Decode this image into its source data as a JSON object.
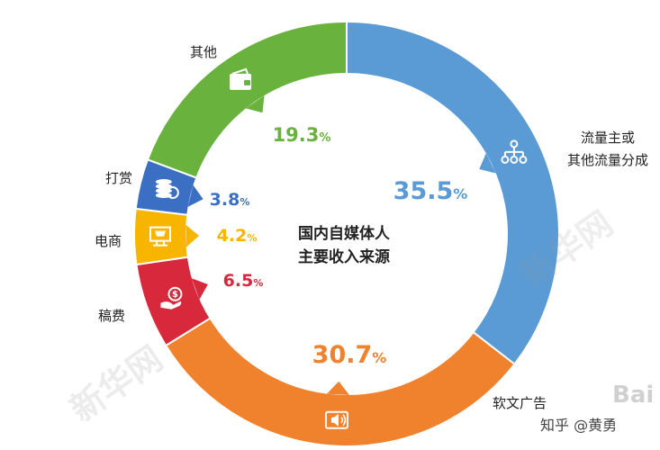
{
  "chart_data": {
    "type": "pie",
    "title": "国内自媒体人主要收入来源",
    "title_lines": [
      "国内自媒体人",
      "主要收入来源"
    ],
    "unit": "%",
    "slices": [
      {
        "name": "流量主或其他流量分成",
        "name_lines": [
          "流量主或",
          "其他流量分成"
        ],
        "value": 35.5,
        "color": "#5b9bd5",
        "icon": "hierarchy-icon"
      },
      {
        "name": "软文广告",
        "name_lines": [
          "软文广告"
        ],
        "value": 30.7,
        "color": "#f0812d",
        "icon": "speaker-icon"
      },
      {
        "name": "稿费",
        "name_lines": [
          "稿费"
        ],
        "value": 6.5,
        "color": "#d7283c",
        "icon": "money-hand-icon"
      },
      {
        "name": "电商",
        "name_lines": [
          "电商"
        ],
        "value": 4.2,
        "color": "#f7b500",
        "icon": "shopping-cart-icon"
      },
      {
        "name": "打赏",
        "name_lines": [
          "打赏"
        ],
        "value": 3.8,
        "color": "#3b6fc3",
        "icon": "coins-icon"
      },
      {
        "name": "其他",
        "name_lines": [
          "其他"
        ],
        "value": 19.3,
        "color": "#6ab23e",
        "icon": "wallet-icon"
      }
    ]
  },
  "watermarks": {
    "xinhua": "新华网",
    "baidu": "Bai",
    "zhihu": "知乎 @黄勇"
  }
}
